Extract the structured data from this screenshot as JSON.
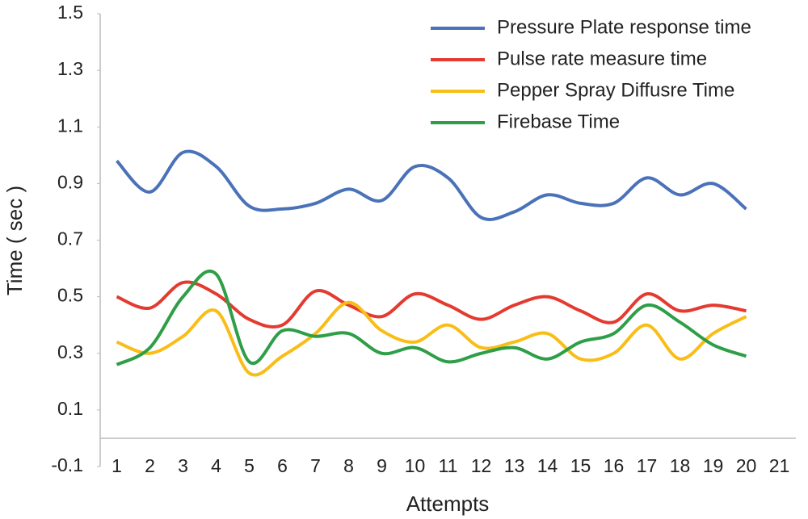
{
  "chart_data": {
    "type": "line",
    "xlabel": "Attempts",
    "ylabel": "Time ( sec )",
    "categories": [
      "1",
      "2",
      "3",
      "4",
      "5",
      "6",
      "7",
      "8",
      "9",
      "10",
      "11",
      "12",
      "13",
      "14",
      "15",
      "16",
      "17",
      "18",
      "19",
      "20",
      "21"
    ],
    "series": [
      {
        "name": "Pressure Plate response time",
        "color": "#4a72b8",
        "values": [
          0.98,
          0.87,
          1.01,
          0.96,
          0.82,
          0.81,
          0.83,
          0.88,
          0.84,
          0.96,
          0.92,
          0.78,
          0.8,
          0.86,
          0.83,
          0.83,
          0.92,
          0.86,
          0.9,
          0.81,
          null
        ]
      },
      {
        "name": "Pulse rate measure time",
        "color": "#e43a2f",
        "values": [
          0.5,
          0.46,
          0.55,
          0.51,
          0.42,
          0.4,
          0.52,
          0.47,
          0.43,
          0.51,
          0.47,
          0.42,
          0.47,
          0.5,
          0.45,
          0.41,
          0.51,
          0.45,
          0.47,
          0.45,
          null
        ]
      },
      {
        "name": "Pepper Spray Diffusre Time",
        "color": "#f9bd18",
        "values": [
          0.34,
          0.3,
          0.36,
          0.45,
          0.23,
          0.29,
          0.37,
          0.48,
          0.38,
          0.34,
          0.4,
          0.32,
          0.34,
          0.37,
          0.28,
          0.3,
          0.4,
          0.28,
          0.37,
          0.43,
          null
        ]
      },
      {
        "name": "Firebase Time",
        "color": "#2f9e48",
        "values": [
          0.26,
          0.32,
          0.5,
          0.58,
          0.27,
          0.38,
          0.36,
          0.37,
          0.3,
          0.32,
          0.27,
          0.3,
          0.32,
          0.28,
          0.34,
          0.37,
          0.47,
          0.41,
          0.33,
          0.29,
          null
        ]
      }
    ],
    "ylim": [
      -0.1,
      1.5
    ],
    "yticks": [
      -0.1,
      0.1,
      0.3,
      0.5,
      0.7,
      0.9,
      1.1,
      1.3,
      1.5
    ],
    "legend": "top-right",
    "smooth": true
  }
}
